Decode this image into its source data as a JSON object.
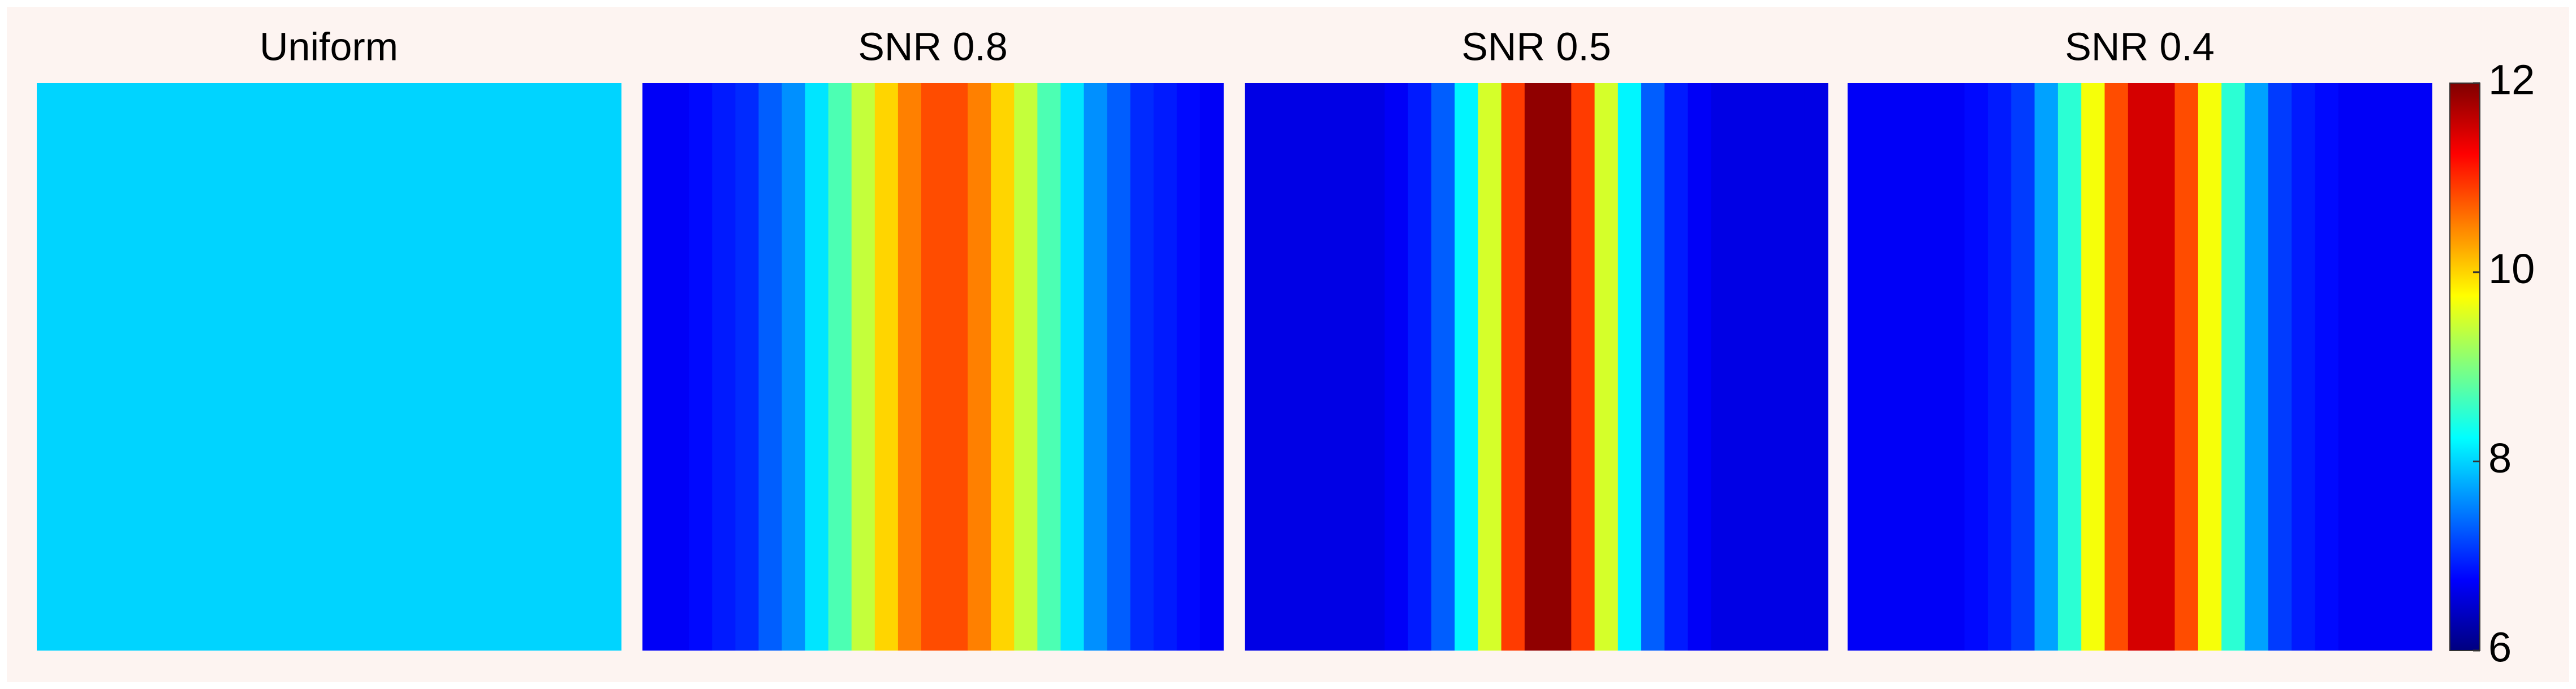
{
  "chart_data": {
    "type": "heatmap",
    "panels": [
      {
        "title": "Uniform",
        "values": [
          8,
          8,
          8,
          8,
          8,
          8,
          8,
          8,
          8,
          8,
          8,
          8,
          8,
          8,
          8,
          8,
          8,
          8,
          8,
          8,
          8,
          8,
          8,
          8,
          8
        ]
      },
      {
        "title": "SNR  0.8",
        "values": [
          6.7,
          6.7,
          6.8,
          6.9,
          7.0,
          7.3,
          7.6,
          8.1,
          8.7,
          9.4,
          10.0,
          10.5,
          10.8,
          10.8,
          10.5,
          10.0,
          9.4,
          8.7,
          8.1,
          7.6,
          7.3,
          7.0,
          6.9,
          6.8,
          6.7
        ]
      },
      {
        "title": "SNR  0.5",
        "values": [
          6.6,
          6.6,
          6.6,
          6.6,
          6.6,
          6.6,
          6.7,
          6.9,
          7.3,
          8.2,
          9.5,
          10.9,
          11.9,
          11.9,
          10.9,
          9.5,
          8.2,
          7.3,
          6.9,
          6.7,
          6.6,
          6.6,
          6.6,
          6.6,
          6.6
        ]
      },
      {
        "title": "SNR  0.4",
        "values": [
          6.7,
          6.7,
          6.7,
          6.7,
          6.7,
          6.8,
          6.9,
          7.1,
          7.7,
          8.5,
          9.7,
          10.8,
          11.5,
          11.5,
          10.8,
          9.7,
          8.5,
          7.7,
          7.1,
          6.9,
          6.8,
          6.7,
          6.7,
          6.7,
          6.7
        ]
      }
    ],
    "colormap": "jet",
    "clim": [
      6,
      12
    ],
    "cticks": [
      6,
      8,
      10,
      12
    ]
  }
}
